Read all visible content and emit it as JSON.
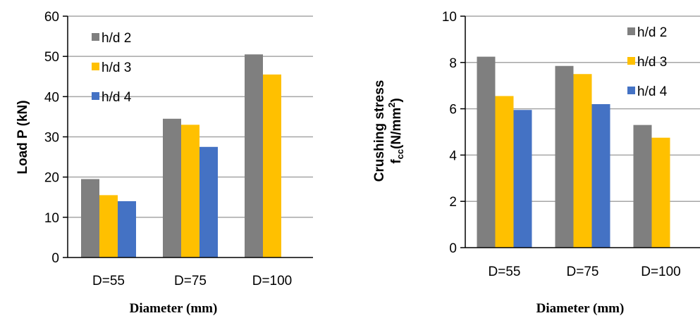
{
  "colors": {
    "h/d 2": "#7f7f7f",
    "h/d 3": "#ffc000",
    "h/d 4": "#4472c4",
    "grid": "#a6a6a6",
    "axis": "#000000"
  },
  "chart_data": [
    {
      "type": "bar",
      "categories": [
        "D=55",
        "D=75",
        "D=100"
      ],
      "series": [
        {
          "name": "h/d 2",
          "values": [
            19.5,
            34.5,
            50.5
          ]
        },
        {
          "name": "h/d 3",
          "values": [
            15.5,
            33.0,
            45.5
          ]
        },
        {
          "name": "h/d 4",
          "values": [
            14.0,
            27.5,
            null
          ]
        }
      ],
      "ylabel": "Load P (kN)",
      "xlabel": "Diameter (mm)",
      "ylim": [
        0,
        60
      ],
      "yticks": [
        "0",
        "10",
        "20",
        "30",
        "40",
        "50",
        "60"
      ],
      "grid": "horizontal",
      "legend": "top-left"
    },
    {
      "type": "bar",
      "categories": [
        "D=55",
        "D=75",
        "D=100"
      ],
      "series": [
        {
          "name": "h/d 2",
          "values": [
            8.25,
            7.85,
            5.3
          ]
        },
        {
          "name": "h/d 3",
          "values": [
            6.55,
            7.5,
            4.75
          ]
        },
        {
          "name": "h/d 4",
          "values": [
            5.95,
            6.2,
            null
          ]
        }
      ],
      "ylabel_line1": "Crushing stress",
      "ylabel_line2_main": "f",
      "ylabel_line2_sub": "cc",
      "ylabel_line2_unit": "(N/mm",
      "ylabel_line2_sup": "2",
      "ylabel_line2_close": ")",
      "xlabel": "Diameter (mm)",
      "ylim": [
        0,
        10
      ],
      "yticks": [
        "0",
        "2",
        "4",
        "6",
        "8",
        "10"
      ],
      "grid": "horizontal",
      "legend": "top-right"
    }
  ]
}
